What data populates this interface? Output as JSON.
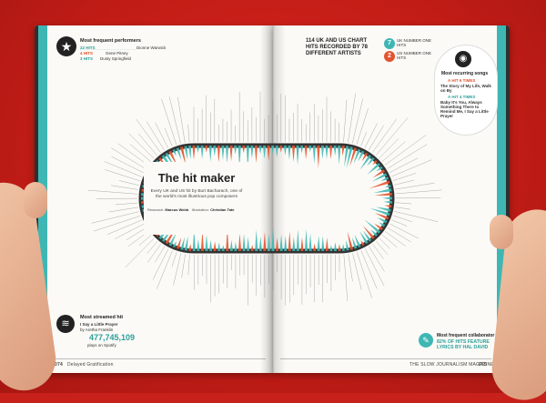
{
  "left_page": {
    "header": {
      "title": "Most frequent performers",
      "rows": [
        {
          "count": "22 HITS",
          "name": "Dionne Warwick"
        },
        {
          "count": "4 HITS",
          "name": "Gene Pitney"
        },
        {
          "count": "3 HITS",
          "name": "Dusty Springfield"
        }
      ]
    },
    "stream": {
      "title": "Most streamed hit",
      "song": "I Say a Little Prayer",
      "by": "by Aretha Franklin",
      "plays": "477,745,109",
      "note": "plays on Spotify"
    },
    "footer_page": "074",
    "footer_section": "Delayed Gratification"
  },
  "center": {
    "title": "The hit maker",
    "subtitle": "Every UK and US hit by Burt Bacharach, one of the world's most illustrious pop composers",
    "research_label": "Research:",
    "research_name": "Marcus Webb",
    "illustration_label": "Illustration:",
    "illustration_name": "Christian Tate"
  },
  "right_page": {
    "header": {
      "title": "114 UK AND US CHART HITS RECORDED BY 78 DIFFERENT ARTISTS",
      "uk_number": "7",
      "uk_label": "UK NUMBER ONE HITS",
      "us_number": "2",
      "us_label": "US NUMBER ONE HITS"
    },
    "recurring": {
      "title": "Most recurring songs",
      "a_label": "A HIT 6 TIMES",
      "a_song": "The Story of My Life, Walk on By",
      "b_label": "A HIT 4 TIMES",
      "b_songs": "Baby It's You, Always Something There to Remind Me, I Say a Little Prayer"
    },
    "collab": {
      "title": "Most frequent collaborator",
      "stat": "82% OF HITS FEATURE LYRICS BY HAL DAVID"
    },
    "footer_section": "THE SLOW JOURNALISM MAGAZINE",
    "footer_page": "075"
  },
  "colors": {
    "teal": "#3eb7b4",
    "orange": "#e2532f",
    "dark": "#222222",
    "paper": "#fbfaf6",
    "background": "#c8201a"
  },
  "icons": [
    "star-icon",
    "spotify-icon",
    "record-icon"
  ]
}
